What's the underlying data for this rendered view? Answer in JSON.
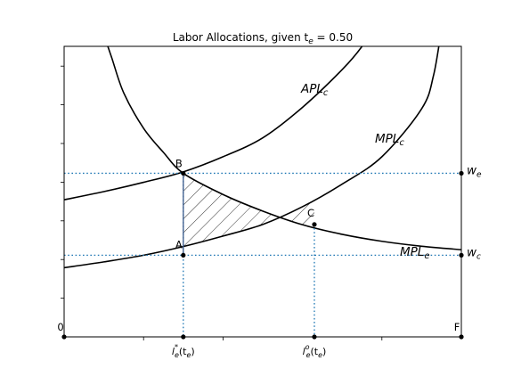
{
  "chart_data": {
    "type": "line",
    "title": "Labor Allocations, given t",
    "title_sub": "e",
    "title_tail": " = 0.50",
    "xlabel": "",
    "ylabel": "",
    "xlim": [
      0,
      1
    ],
    "ylim": [
      0,
      1
    ],
    "grid": false,
    "series": [
      {
        "name": "APL",
        "sub": "c",
        "x": [
          0.0,
          0.1,
          0.2,
          0.3,
          0.4,
          0.5,
          0.6,
          0.7,
          0.75,
          0.78
        ],
        "y": [
          0.472,
          0.5,
          0.532,
          0.568,
          0.62,
          0.685,
          0.79,
          0.92,
          1.0,
          1.07
        ]
      },
      {
        "name": "MPL",
        "sub": "c",
        "x": [
          0.0,
          0.1,
          0.2,
          0.3,
          0.4,
          0.5,
          0.6,
          0.7,
          0.8,
          0.9,
          0.93,
          0.95
        ],
        "y": [
          0.238,
          0.258,
          0.281,
          0.311,
          0.347,
          0.387,
          0.448,
          0.526,
          0.62,
          0.785,
          0.9,
          1.06
        ]
      },
      {
        "name": "MPL",
        "sub": "e",
        "x": [
          0.095,
          0.12,
          0.15,
          0.2,
          0.25,
          0.3,
          0.4,
          0.5,
          0.6,
          0.7,
          0.8,
          0.9,
          1.0
        ],
        "y": [
          1.06,
          0.96,
          0.84,
          0.718,
          0.635,
          0.563,
          0.49,
          0.433,
          0.386,
          0.353,
          0.329,
          0.312,
          0.3
        ]
      }
    ],
    "points": [
      {
        "label": "B",
        "x": 0.3,
        "y": 0.563
      },
      {
        "label": "A",
        "x": 0.3,
        "y": 0.281
      },
      {
        "label": "C",
        "x": 0.63,
        "y": 0.387
      }
    ],
    "wages": [
      {
        "label": "w",
        "sub": "e",
        "y": 0.563
      },
      {
        "label": "w",
        "sub": "c",
        "y": 0.281
      }
    ],
    "xticks": [
      {
        "label": "l",
        "sup": "*",
        "sub": "e",
        "tail": "(t",
        "sub2": "e",
        "end": ")",
        "x": 0.3
      },
      {
        "label": "l",
        "sup": "o",
        "sub": "e",
        "tail": "(t",
        "sub2": "e",
        "end": ")",
        "x": 0.63
      }
    ],
    "corners": {
      "origin": "0",
      "end": "F"
    }
  }
}
